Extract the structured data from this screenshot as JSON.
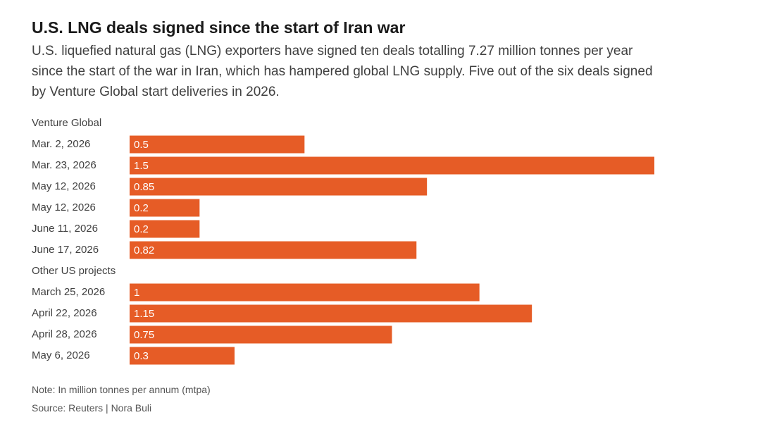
{
  "title": "U.S. LNG deals signed since the start of Iran war",
  "subtitle": "U.S. liquefied natural gas (LNG) exporters have signed ten deals totalling 7.27 million tonnes per year since the start of the war in Iran, which has hampered global LNG supply. Five out of the six deals signed by Venture Global start deliveries in 2026.",
  "note": "Note: In million tonnes per annum (mtpa)",
  "source": "Source: Reuters | Nora Buli",
  "colors": {
    "bar": "#e65c26",
    "bar_label": "#ffffff",
    "text": "#404040"
  },
  "chart_data": {
    "type": "bar",
    "orientation": "horizontal",
    "unit": "mtpa",
    "xlim": [
      0,
      1.5
    ],
    "grid": false,
    "groups": [
      {
        "name": "Venture Global",
        "categories": [
          "Mar. 2, 2026",
          "Mar. 23, 2026",
          "May 12, 2026",
          "May 12, 2026",
          "June 11, 2026",
          "June 17, 2026"
        ],
        "values": [
          0.5,
          1.5,
          0.85,
          0.2,
          0.2,
          0.82
        ],
        "labels": [
          "0.5",
          "1.5",
          "0.85",
          "0.2",
          "0.2",
          "0.82"
        ]
      },
      {
        "name": "Other US projects",
        "categories": [
          "March 25, 2026",
          "April 22, 2026",
          "April 28, 2026",
          "May 6, 2026"
        ],
        "values": [
          1,
          1.15,
          0.75,
          0.3
        ],
        "labels": [
          "1",
          "1.15",
          "0.75",
          "0.3"
        ]
      }
    ]
  }
}
